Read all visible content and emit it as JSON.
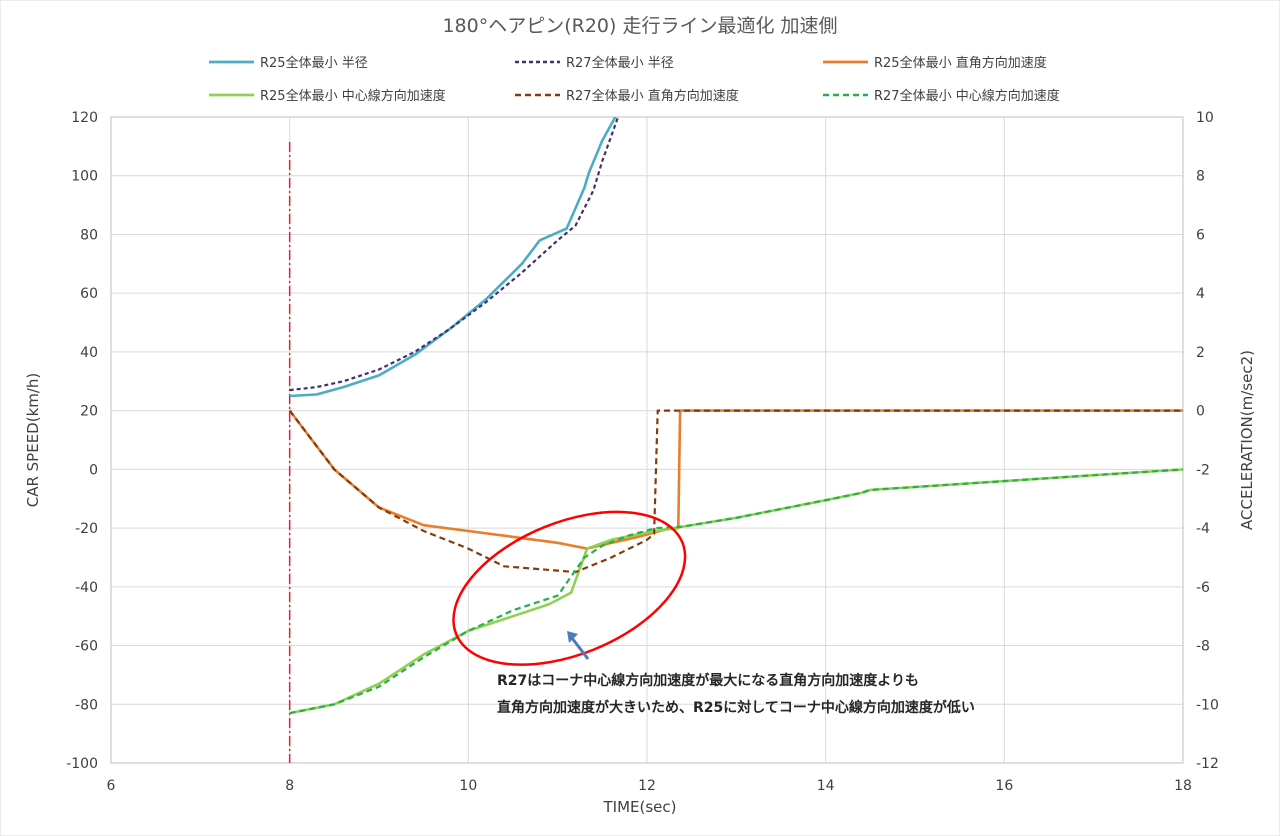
{
  "chart_data": {
    "type": "line",
    "title": "180°ヘアピン(R20) 走行ライン最適化 加速側",
    "xlabel": "TIME(sec)",
    "ylabel": "CAR SPEED(km/h)",
    "y2label": "ACCELERATION(m/sec2)",
    "xlim": [
      6,
      18
    ],
    "ylim": [
      -100,
      120
    ],
    "y2lim": [
      -12,
      10
    ],
    "x_ticks": [
      "6",
      "8",
      "10",
      "12",
      "14",
      "16",
      "18"
    ],
    "y_ticks": [
      "120",
      "100",
      "80",
      "60",
      "40",
      "20",
      "0",
      "-20",
      "-40",
      "-60",
      "-80",
      "-100"
    ],
    "y2_ticks": [
      "10",
      "8",
      "6",
      "4",
      "2",
      "0",
      "-2",
      "-4",
      "-6",
      "-8",
      "-10",
      "-12"
    ],
    "grid": true,
    "legend_position": "top",
    "vertical_marker_x": 8,
    "series": [
      {
        "name": "R25全体最小 半径",
        "axis": "left",
        "color": "#4bacc6",
        "dash": "solid",
        "x": [
          8.0,
          8.3,
          8.6,
          9.0,
          9.4,
          9.8,
          10.2,
          10.6,
          10.8,
          11.1,
          11.3,
          11.35,
          11.5,
          11.7
        ],
        "y": [
          25,
          25.5,
          28,
          32,
          39,
          48,
          58,
          70,
          78,
          82,
          96,
          101,
          112,
          123
        ]
      },
      {
        "name": "R27全体最小 半径",
        "axis": "left",
        "color": "#403075",
        "dash": "4,3",
        "x": [
          8.0,
          8.3,
          8.6,
          9.0,
          9.4,
          9.8,
          10.2,
          10.6,
          11.0,
          11.2,
          11.4,
          11.5,
          11.7
        ],
        "y": [
          27,
          28,
          30,
          34,
          40,
          48,
          57,
          67,
          78,
          83,
          95,
          105,
          122
        ]
      },
      {
        "name": "R25全体最小 直角方向加速度",
        "axis": "right",
        "color": "#e87d2c",
        "dash": "solid",
        "x": [
          8.0,
          8.5,
          9.0,
          9.5,
          10.0,
          10.5,
          11.0,
          11.33,
          11.6,
          11.9,
          12.2,
          12.35,
          12.37,
          13.0,
          14.0,
          15.0,
          16.0,
          17.0,
          18.0
        ],
        "y": [
          0,
          -2.0,
          -3.3,
          -3.9,
          -4.1,
          -4.3,
          -4.5,
          -4.7,
          -4.5,
          -4.3,
          -4.05,
          -4.0,
          0,
          0,
          0,
          0,
          0,
          0,
          0
        ]
      },
      {
        "name": "R25全体最小 中心線方向加速度",
        "axis": "right",
        "color": "#92d050",
        "dash": "solid",
        "x": [
          8.0,
          8.5,
          9.0,
          9.5,
          10.0,
          10.5,
          10.9,
          11.15,
          11.33,
          11.6,
          12.0,
          12.4,
          13.0,
          13.5,
          14.0,
          14.4,
          14.5,
          15.0,
          16.0,
          17.0,
          18.0
        ],
        "y": [
          -10.3,
          -10.0,
          -9.3,
          -8.3,
          -7.5,
          -7.0,
          -6.6,
          -6.2,
          -4.7,
          -4.4,
          -4.15,
          -3.95,
          -3.65,
          -3.35,
          -3.05,
          -2.8,
          -2.7,
          -2.6,
          -2.4,
          -2.2,
          -2.0
        ]
      },
      {
        "name": "R27全体最小 直角方向加速度",
        "axis": "right",
        "color": "#843c0c",
        "dash": "6,4",
        "x": [
          8.0,
          8.5,
          9.0,
          9.5,
          10.0,
          10.4,
          10.8,
          11.2,
          11.6,
          12.0,
          12.08,
          12.12,
          13.0,
          14.0,
          15.0,
          16.0,
          17.0,
          18.0
        ],
        "y": [
          0,
          -2.0,
          -3.3,
          -4.1,
          -4.7,
          -5.3,
          -5.4,
          -5.5,
          -5.0,
          -4.4,
          -4.2,
          0,
          0,
          0,
          0,
          0,
          0,
          0
        ]
      },
      {
        "name": "R27全体最小 中心線方向加速度",
        "axis": "right",
        "color": "#27b04a",
        "dash": "6,4",
        "x": [
          8.0,
          8.5,
          9.0,
          9.5,
          10.0,
          10.5,
          11.0,
          11.3,
          11.5,
          11.8,
          12.1,
          12.4,
          13.0,
          13.5,
          14.0,
          14.4,
          14.5,
          15.0,
          16.0,
          17.0,
          18.0
        ],
        "y": [
          -10.3,
          -10.0,
          -9.4,
          -8.4,
          -7.5,
          -6.8,
          -6.3,
          -5.0,
          -4.6,
          -4.25,
          -4.0,
          -3.95,
          -3.65,
          -3.35,
          -3.05,
          -2.8,
          -2.7,
          -2.6,
          -2.4,
          -2.2,
          -2.0
        ]
      }
    ],
    "annotation": {
      "line1": "R27はコーナ中心線方向加速度が最大になる直角方向加速度よりも",
      "line2": "直角方向加速度が大きいため、R25に対してコーナ中心線方向加速度が低い",
      "ellipse_color": "#ff0000",
      "arrow_color": "#4a7ebb"
    }
  }
}
